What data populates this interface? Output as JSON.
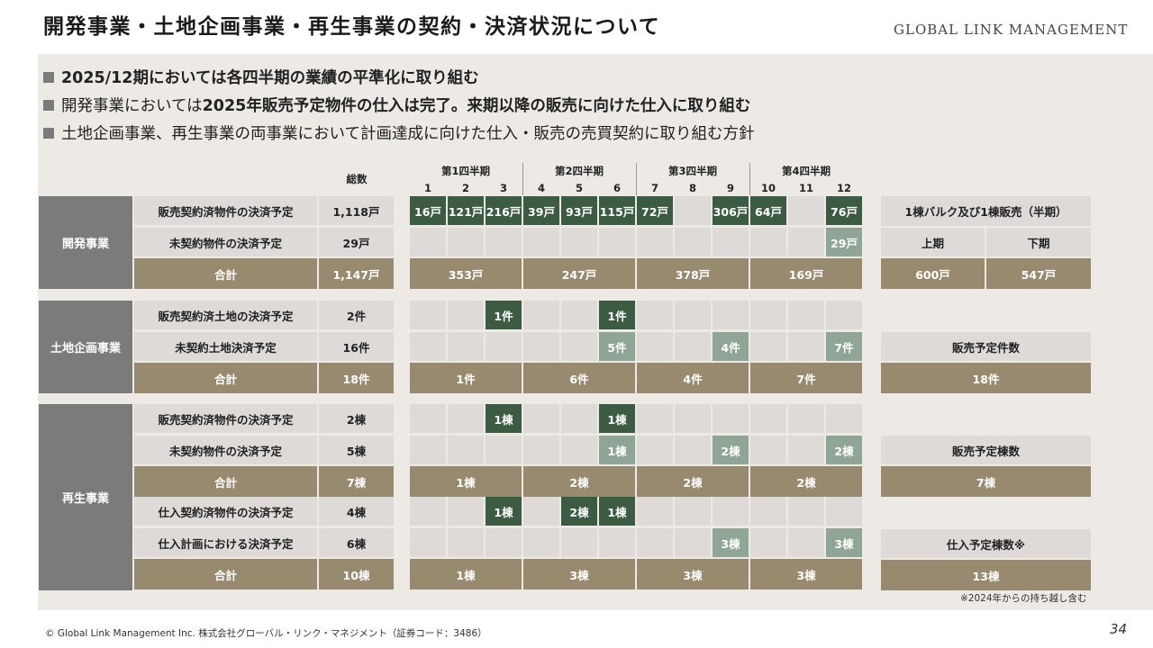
{
  "page": {
    "title": "開発事業・土地企画事業・再生事業の契約・決済状況について",
    "company_name": "GLOBAL LINK MANAGEMENT",
    "copyright": "© Global Link Management Inc. 株式会社グローバル・リンク・マネジメント（証券コード：3486）",
    "page_number": "34",
    "note": "※2024年からの持ち越し含む"
  },
  "bullets": [
    {
      "bold": "2025/12期においては各四半期の業績の平準化に取り組む",
      "rest": ""
    },
    {
      "pre": "開発事業においては",
      "bold": "2025年販売予定物件の仕入は完了。来期以降の販売に向けた仕入に取り組む"
    },
    {
      "pre": "土地企画事業、再生事業の両事業において計画達成に向けた仕入・販売の売買契約に取り組む方針"
    }
  ],
  "table_header": {
    "total": "総数",
    "quarters": [
      "第1四半期",
      "第2四半期",
      "第3四半期",
      "第4四半期"
    ],
    "months": [
      "1",
      "2",
      "3",
      "4",
      "5",
      "6",
      "7",
      "8",
      "9",
      "10",
      "11",
      "12"
    ]
  },
  "segments": {
    "dev": {
      "name": "開発事業",
      "rows": [
        {
          "label": "販売契約済物件の決済予定",
          "total": "1,118戸",
          "months": [
            "16戸",
            "121戸",
            "216戸",
            "39戸",
            "93戸",
            "115戸",
            "72戸",
            "",
            "306戸",
            "64戸",
            "",
            "76戸"
          ]
        },
        {
          "label": "未契約物件の決済予定",
          "total": "29戸",
          "months": [
            "",
            "",
            "",
            "",
            "",
            "",
            "",
            "",
            "",
            "",
            "",
            "29戸"
          ]
        },
        {
          "label": "合計",
          "total": "1,147戸",
          "quarters": [
            "353戸",
            "247戸",
            "378戸",
            "169戸"
          ]
        }
      ]
    },
    "land": {
      "name": "土地企画事業",
      "rows": [
        {
          "label": "販売契約済土地の決済予定",
          "total": "2件",
          "months": [
            "",
            "",
            "1件",
            "",
            "",
            "1件",
            "",
            "",
            "",
            "",
            "",
            ""
          ]
        },
        {
          "label": "未契約土地決済予定",
          "total": "16件",
          "months": [
            "",
            "",
            "",
            "",
            "",
            "5件",
            "",
            "",
            "4件",
            "",
            "",
            "7件"
          ]
        },
        {
          "label": "合計",
          "total": "18件",
          "quarters": [
            "1件",
            "6件",
            "4件",
            "7件"
          ]
        }
      ]
    },
    "regen": {
      "name": "再生事業",
      "rows": [
        {
          "label": "販売契約済物件の決済予定",
          "total": "2棟",
          "months": [
            "",
            "",
            "1棟",
            "",
            "",
            "1棟",
            "",
            "",
            "",
            "",
            "",
            ""
          ]
        },
        {
          "label": "未契約物件の決済予定",
          "total": "5棟",
          "months": [
            "",
            "",
            "",
            "",
            "",
            "1棟",
            "",
            "",
            "2棟",
            "",
            "",
            "2棟"
          ]
        },
        {
          "label": "合計",
          "total": "7棟",
          "quarters": [
            "1棟",
            "2棟",
            "2棟",
            "2棟"
          ]
        },
        {
          "label": "仕入契約済物件の決済予定",
          "total": "4棟",
          "months": [
            "",
            "",
            "1棟",
            "",
            "2棟",
            "1棟",
            "",
            "",
            "",
            "",
            "",
            ""
          ]
        },
        {
          "label": "仕入計画における決済予定",
          "total": "6棟",
          "months": [
            "",
            "",
            "",
            "",
            "",
            "",
            "",
            "",
            "3棟",
            "",
            "",
            "3棟"
          ]
        },
        {
          "label": "合計",
          "total": "10棟",
          "quarters": [
            "1棟",
            "3棟",
            "3棟",
            "3棟"
          ]
        }
      ]
    }
  },
  "side": {
    "bulk_title": "1棟バルク及び1棟販売（半期）",
    "first_half_label": "上期",
    "second_half_label": "下期",
    "first_half_value": "600戸",
    "second_half_value": "547戸",
    "land_title": "販売予定件数",
    "land_value": "18件",
    "regen_title": "販売予定棟数",
    "regen_value": "7棟",
    "purchase_title": "仕入予定棟数※",
    "purchase_value": "13棟"
  },
  "colors": {
    "dark_green": "#3b5c42",
    "light_green": "#8fa595",
    "total_khaki": "#988a6e",
    "segment_gray": "#7b7b7b",
    "cell_gray": "#dddad8",
    "panel_bg": "#edeae6"
  }
}
